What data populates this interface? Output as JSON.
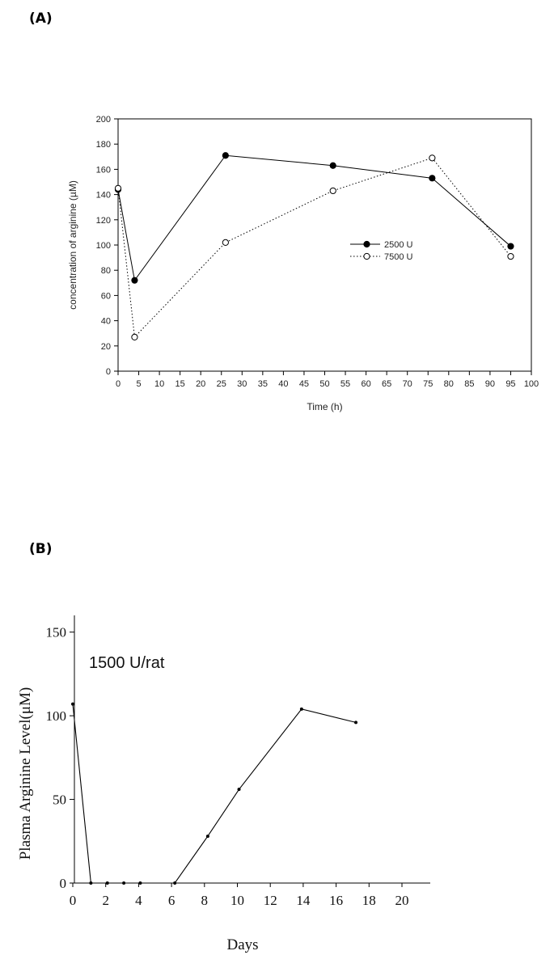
{
  "panels": {
    "a_label": "(A)",
    "b_label": "(B)"
  },
  "chart_data": [
    {
      "type": "line",
      "xlabel": "Time (h)",
      "ylabel": "concentration of arginine (µM)",
      "xlim": [
        0,
        100
      ],
      "ylim": [
        0,
        200
      ],
      "x_ticks": [
        0,
        5,
        10,
        15,
        20,
        25,
        30,
        35,
        40,
        45,
        50,
        55,
        60,
        65,
        70,
        75,
        80,
        85,
        90,
        95,
        100
      ],
      "y_ticks": [
        0,
        20,
        40,
        60,
        80,
        100,
        120,
        140,
        160,
        180,
        200
      ],
      "grid": false,
      "legend_position": "middle-right",
      "series": [
        {
          "name": "2500 U",
          "style": "solid",
          "marker": "filled-circle",
          "x": [
            0,
            4,
            26,
            52,
            76,
            95
          ],
          "y": [
            144,
            72,
            171,
            163,
            153,
            99
          ]
        },
        {
          "name": "7500 U",
          "style": "dotted",
          "marker": "open-circle",
          "x": [
            0,
            4,
            26,
            52,
            76,
            95
          ],
          "y": [
            145,
            27,
            102,
            143,
            169,
            91
          ]
        }
      ]
    },
    {
      "type": "line",
      "xlabel": "Days",
      "ylabel": "Plasma Arginine Level(μM)",
      "annotation": "1500 U/rat",
      "xlim": [
        0,
        22
      ],
      "ylim": [
        0,
        160
      ],
      "x_ticks": [
        0,
        2,
        4,
        6,
        8,
        10,
        12,
        14,
        16,
        18,
        20
      ],
      "y_ticks": [
        0,
        50,
        100,
        150
      ],
      "grid": false,
      "series": [
        {
          "style": "solid",
          "marker": "small-dot",
          "x": [
            0,
            1.1,
            2.1,
            3.1,
            4.1,
            6.2,
            8.2,
            10.1,
            13.9,
            17.2
          ],
          "y": [
            107,
            0,
            0,
            0,
            0,
            0,
            28,
            56,
            104,
            96
          ]
        }
      ]
    }
  ]
}
